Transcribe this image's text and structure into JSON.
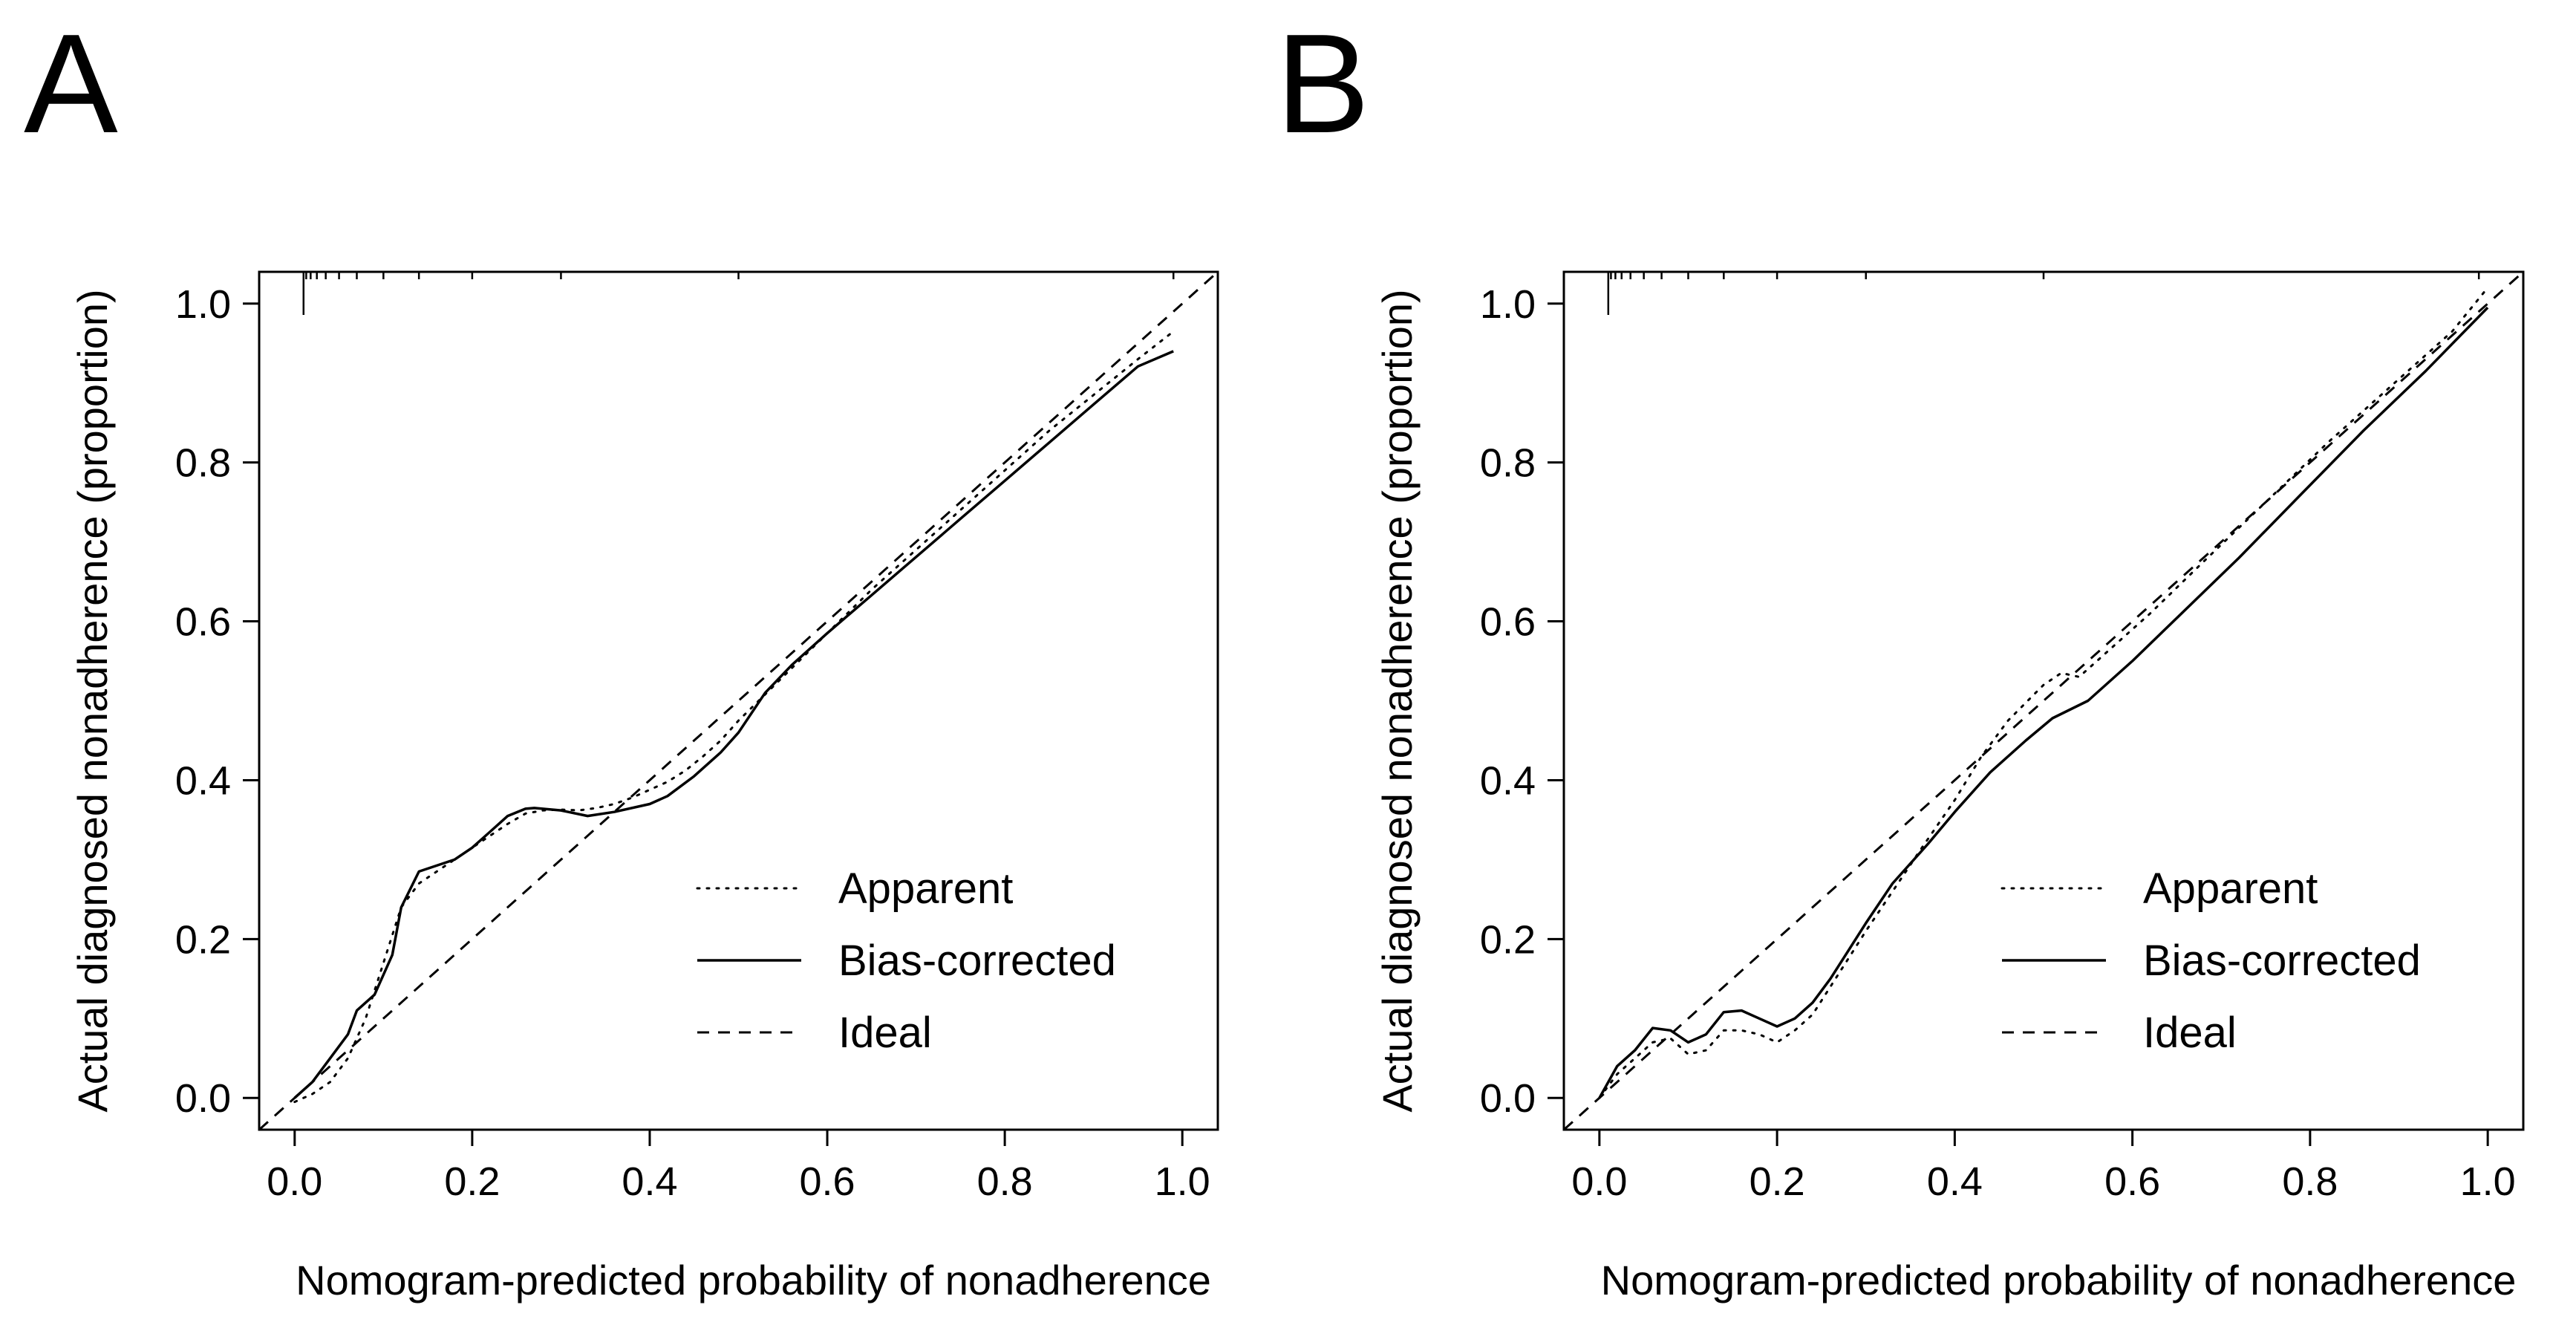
{
  "figure": {
    "panels": [
      {
        "letter": "A"
      },
      {
        "letter": "B"
      }
    ]
  },
  "chart_data": [
    {
      "panel": "A",
      "type": "line",
      "title": "",
      "xlabel": "Nomogram-predicted probability of nonadherence",
      "ylabel": "Actual diagnosed nonadherence (proportion)",
      "xlim": [
        -0.04,
        1.04
      ],
      "ylim": [
        -0.04,
        1.04
      ],
      "x_ticks": [
        "0.0",
        "0.2",
        "0.4",
        "0.6",
        "0.8",
        "1.0"
      ],
      "y_ticks": [
        "0.0",
        "0.2",
        "0.4",
        "0.6",
        "0.8",
        "1.0"
      ],
      "grid": false,
      "legend_position": "bottom-right",
      "legend": [
        "Apparent",
        "Bias-corrected",
        "Ideal"
      ],
      "rug_top": [
        0.01,
        0.013,
        0.018,
        0.025,
        0.035,
        0.05,
        0.07,
        0.1,
        0.14,
        0.2,
        0.3,
        0.5,
        0.99
      ],
      "series": [
        {
          "name": "Apparent",
          "style": "dotted",
          "x": [
            0.0,
            0.02,
            0.04,
            0.06,
            0.08,
            0.1,
            0.12,
            0.14,
            0.16,
            0.18,
            0.2,
            0.22,
            0.24,
            0.26,
            0.28,
            0.3,
            0.32,
            0.34,
            0.36,
            0.38,
            0.4,
            0.42,
            0.44,
            0.46,
            0.48,
            0.5,
            0.55,
            0.6,
            0.65,
            0.7,
            0.75,
            0.8,
            0.85,
            0.9,
            0.95,
            0.99
          ],
          "y": [
            -0.005,
            0.005,
            0.02,
            0.05,
            0.1,
            0.17,
            0.24,
            0.27,
            0.285,
            0.3,
            0.315,
            0.33,
            0.345,
            0.358,
            0.362,
            0.363,
            0.362,
            0.365,
            0.37,
            0.378,
            0.388,
            0.398,
            0.412,
            0.43,
            0.45,
            0.475,
            0.53,
            0.585,
            0.64,
            0.69,
            0.74,
            0.79,
            0.84,
            0.885,
            0.93,
            0.965
          ]
        },
        {
          "name": "Bias-corrected",
          "style": "solid",
          "x": [
            0.0,
            0.02,
            0.04,
            0.06,
            0.07,
            0.09,
            0.11,
            0.12,
            0.14,
            0.18,
            0.2,
            0.22,
            0.24,
            0.26,
            0.27,
            0.3,
            0.33,
            0.36,
            0.4,
            0.42,
            0.45,
            0.48,
            0.5,
            0.53,
            0.56,
            0.6,
            0.65,
            0.7,
            0.75,
            0.8,
            0.85,
            0.9,
            0.95,
            0.99
          ],
          "y": [
            0.0,
            0.02,
            0.05,
            0.08,
            0.11,
            0.13,
            0.18,
            0.24,
            0.285,
            0.3,
            0.315,
            0.335,
            0.355,
            0.364,
            0.365,
            0.362,
            0.355,
            0.36,
            0.37,
            0.38,
            0.405,
            0.435,
            0.46,
            0.51,
            0.545,
            0.585,
            0.633,
            0.681,
            0.729,
            0.777,
            0.825,
            0.873,
            0.921,
            0.94
          ]
        },
        {
          "name": "Ideal",
          "style": "dashed",
          "x": [
            -0.04,
            1.04
          ],
          "y": [
            -0.04,
            1.04
          ]
        }
      ]
    },
    {
      "panel": "B",
      "type": "line",
      "title": "",
      "xlabel": "Nomogram-predicted probability of nonadherence",
      "ylabel": "Actual diagnosed nonadherence (proportion)",
      "xlim": [
        -0.04,
        1.04
      ],
      "ylim": [
        -0.04,
        1.04
      ],
      "x_ticks": [
        "0.0",
        "0.2",
        "0.4",
        "0.6",
        "0.8",
        "1.0"
      ],
      "y_ticks": [
        "0.0",
        "0.2",
        "0.4",
        "0.6",
        "0.8",
        "1.0"
      ],
      "grid": false,
      "legend_position": "bottom-right",
      "legend": [
        "Apparent",
        "Bias-corrected",
        "Ideal"
      ],
      "rug_top": [
        0.01,
        0.013,
        0.018,
        0.025,
        0.035,
        0.05,
        0.07,
        0.1,
        0.14,
        0.2,
        0.3,
        0.5,
        0.99
      ],
      "series": [
        {
          "name": "Apparent",
          "style": "dotted",
          "x": [
            0.0,
            0.02,
            0.04,
            0.06,
            0.08,
            0.1,
            0.12,
            0.14,
            0.16,
            0.18,
            0.2,
            0.22,
            0.24,
            0.26,
            0.28,
            0.3,
            0.33,
            0.36,
            0.4,
            0.43,
            0.46,
            0.5,
            0.52,
            0.54,
            0.58,
            0.62,
            0.68,
            0.75,
            0.82,
            0.9,
            0.96,
            1.0
          ],
          "y": [
            0.0,
            0.03,
            0.05,
            0.07,
            0.075,
            0.055,
            0.06,
            0.085,
            0.085,
            0.08,
            0.07,
            0.085,
            0.105,
            0.14,
            0.175,
            0.21,
            0.26,
            0.31,
            0.375,
            0.43,
            0.475,
            0.52,
            0.535,
            0.53,
            0.57,
            0.61,
            0.675,
            0.75,
            0.825,
            0.905,
            0.965,
            1.02
          ]
        },
        {
          "name": "Bias-corrected",
          "style": "solid",
          "x": [
            0.0,
            0.02,
            0.04,
            0.06,
            0.08,
            0.1,
            0.12,
            0.14,
            0.16,
            0.18,
            0.2,
            0.22,
            0.24,
            0.26,
            0.28,
            0.3,
            0.33,
            0.37,
            0.4,
            0.44,
            0.48,
            0.51,
            0.55,
            0.6,
            0.66,
            0.72,
            0.79,
            0.86,
            0.93,
            1.0
          ],
          "y": [
            0.0,
            0.04,
            0.06,
            0.088,
            0.085,
            0.07,
            0.08,
            0.108,
            0.11,
            0.1,
            0.09,
            0.1,
            0.12,
            0.15,
            0.185,
            0.22,
            0.27,
            0.32,
            0.36,
            0.41,
            0.45,
            0.478,
            0.5,
            0.55,
            0.615,
            0.68,
            0.76,
            0.84,
            0.915,
            0.995
          ]
        },
        {
          "name": "Ideal",
          "style": "dashed",
          "x": [
            -0.04,
            1.04
          ],
          "y": [
            -0.04,
            1.04
          ]
        }
      ]
    }
  ]
}
